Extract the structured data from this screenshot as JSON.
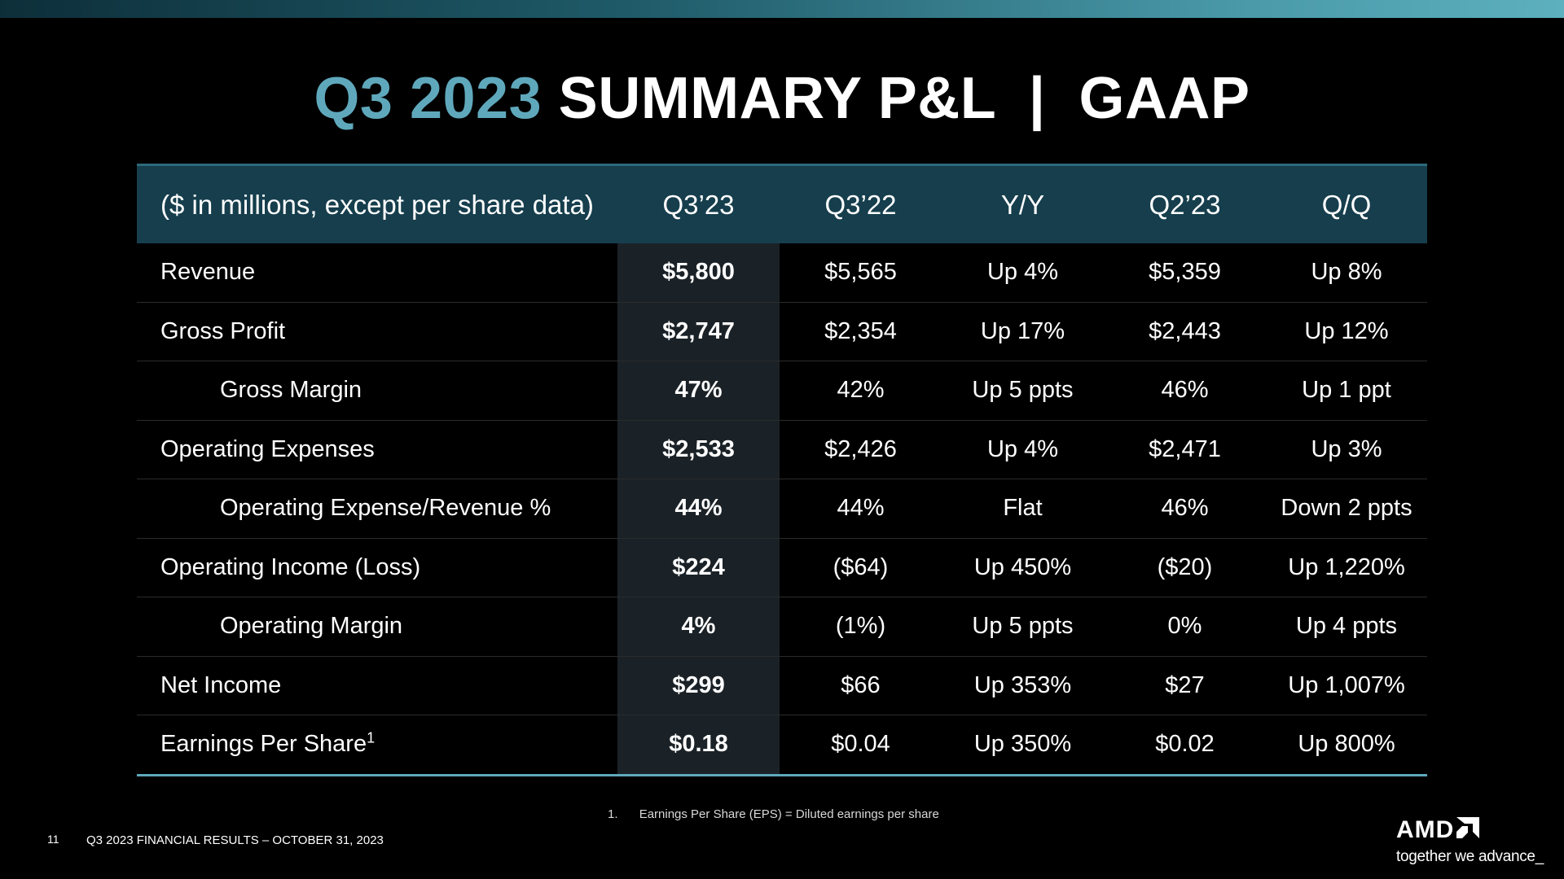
{
  "slide": {
    "title_accent": "Q3 2023",
    "title_main": "SUMMARY P&L  |  GAAP",
    "page_number": "11",
    "footer_text": "Q3 2023 FINANCIAL RESULTS – OCTOBER 31, 2023",
    "footnote_number": "1.",
    "footnote_text": "Earnings Per Share (EPS) = Diluted earnings per share",
    "logo_text": "AMD",
    "tagline": "together we advance_"
  },
  "colors": {
    "accent": "#5fa8bc",
    "header_bg": "#163e4d",
    "highlight_col_bg": "#1b2227"
  },
  "table": {
    "headers": [
      "($ in millions, except per share data)",
      "Q3’23",
      "Q3’22",
      "Y/Y",
      "Q2’23",
      "Q/Q"
    ],
    "rows": [
      {
        "label": "Revenue",
        "sup": "",
        "cells": [
          "$5,800",
          "$5,565",
          "Up 4%",
          "$5,359",
          "Up 8%"
        ]
      },
      {
        "label": "Gross Profit",
        "sup": "",
        "cells": [
          "$2,747",
          "$2,354",
          "Up 17%",
          "$2,443",
          "Up 12%"
        ]
      },
      {
        "label": "Gross Margin",
        "sup": "",
        "cells": [
          "47%",
          "42%",
          "Up 5 ppts",
          "46%",
          "Up 1 ppt"
        ]
      },
      {
        "label": "Operating Expenses",
        "sup": "",
        "cells": [
          "$2,533",
          "$2,426",
          "Up 4%",
          "$2,471",
          "Up 3%"
        ]
      },
      {
        "label": "Operating Expense/Revenue %",
        "sup": "",
        "cells": [
          "44%",
          "44%",
          "Flat",
          "46%",
          "Down 2 ppts"
        ]
      },
      {
        "label": "Operating Income (Loss)",
        "sup": "",
        "cells": [
          "$224",
          "($64)",
          "Up 450%",
          "($20)",
          "Up 1,220%"
        ]
      },
      {
        "label": "Operating Margin",
        "sup": "",
        "cells": [
          "4%",
          "(1%)",
          "Up 5 ppts",
          "0%",
          "Up 4 ppts"
        ]
      },
      {
        "label": "Net Income",
        "sup": "",
        "cells": [
          "$299",
          "$66",
          "Up 353%",
          "$27",
          "Up 1,007%"
        ]
      },
      {
        "label": "Earnings Per Share",
        "sup": "1",
        "cells": [
          "$0.18",
          "$0.04",
          "Up 350%",
          "$0.02",
          "Up 800%"
        ]
      }
    ]
  }
}
